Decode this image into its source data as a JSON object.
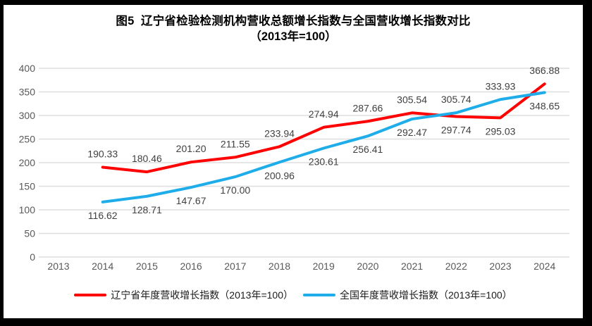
{
  "chart_data": {
    "type": "line",
    "title": "图5  辽宁省检验检测机构营收总额增长指数与全国营收增长指数对比",
    "subtitle": "（2013年=100）",
    "categories": [
      "2013",
      "2014",
      "2015",
      "2016",
      "2017",
      "2018",
      "2019",
      "2020",
      "2021",
      "2022",
      "2023",
      "2024"
    ],
    "ylim": [
      0,
      400
    ],
    "ytick_step": 50,
    "yticks": [
      0,
      50,
      100,
      150,
      200,
      250,
      300,
      350,
      400
    ],
    "grid": true,
    "legend_position": "bottom",
    "axis_color": "#595959",
    "gridline_color": "#dedede",
    "data_label_color": "#404040",
    "series": [
      {
        "name": "辽宁省年度营收增长指数（2013年=100）",
        "color": "#fe0000",
        "values": [
          null,
          190.33,
          180.46,
          201.2,
          211.55,
          233.94,
          274.94,
          287.66,
          305.54,
          297.74,
          295.03,
          366.88
        ],
        "labels": [
          null,
          "190.33",
          "180.46",
          "201.20",
          "211.55",
          "233.94",
          "274.94",
          "287.66",
          "305.54",
          "297.74",
          "295.03",
          "366.88"
        ],
        "label_side": [
          null,
          "above",
          "above",
          "above",
          "above",
          "above",
          "above",
          "above",
          "above",
          "below",
          "below",
          "above"
        ]
      },
      {
        "name": "全国年度营收增长指数（2013年=100）",
        "color": "#1fadea",
        "values": [
          null,
          116.62,
          128.71,
          147.67,
          170.0,
          200.96,
          230.61,
          256.41,
          292.47,
          305.74,
          333.93,
          348.65
        ],
        "labels": [
          null,
          "116.62",
          "128.71",
          "147.67",
          "170.00",
          "200.96",
          "230.61",
          "256.41",
          "292.47",
          "305.74",
          "333.93",
          "348.65"
        ],
        "label_side": [
          null,
          "below",
          "below",
          "below",
          "below",
          "below",
          "below",
          "below",
          "below",
          "above",
          "above",
          "below"
        ]
      }
    ]
  }
}
